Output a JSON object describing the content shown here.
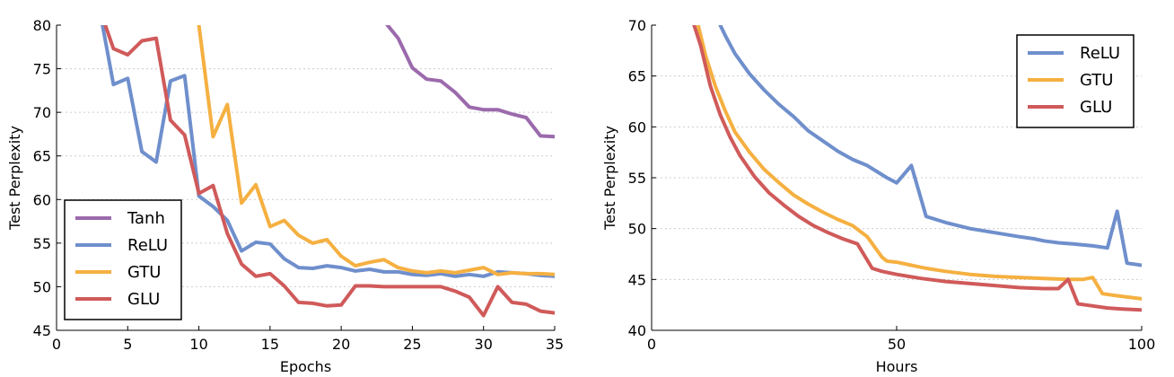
{
  "chart_data": [
    {
      "type": "line",
      "xlabel": "Epochs",
      "ylabel": "Test Perplexity",
      "xlim": [
        0,
        35
      ],
      "ylim": [
        45,
        80
      ],
      "xticks": [
        0,
        5,
        10,
        15,
        20,
        25,
        30,
        35
      ],
      "yticks": [
        45,
        50,
        55,
        60,
        65,
        70,
        75,
        80
      ],
      "grid": "horizontal",
      "legend_position": "lower-left",
      "series": [
        {
          "name": "Tanh",
          "color": "#9b6aac",
          "x": [
            22,
            23,
            24,
            25,
            26,
            27,
            28,
            29,
            30,
            31,
            32,
            33,
            34,
            35
          ],
          "y": [
            82,
            80.5,
            78.5,
            75.1,
            73.8,
            73.6,
            72.3,
            70.6,
            70.3,
            70.3,
            69.8,
            69.4,
            67.3,
            67.2
          ]
        },
        {
          "name": "ReLU",
          "color": "#6f8fcc",
          "x": [
            3,
            4,
            5,
            6,
            7,
            8,
            9,
            10,
            11,
            12,
            13,
            14,
            15,
            16,
            17,
            18,
            19,
            20,
            21,
            22,
            23,
            24,
            25,
            26,
            27,
            28,
            29,
            30,
            31,
            32,
            33,
            34,
            35
          ],
          "y": [
            82,
            73.2,
            73.9,
            65.5,
            64.3,
            73.6,
            74.2,
            60.4,
            59.2,
            57.6,
            54.1,
            55.1,
            54.9,
            53.2,
            52.2,
            52.1,
            52.4,
            52.2,
            51.8,
            52.0,
            51.7,
            51.7,
            51.4,
            51.3,
            51.5,
            51.2,
            51.4,
            51.2,
            51.7,
            51.6,
            51.5,
            51.3,
            51.2
          ]
        },
        {
          "name": "GTU",
          "color": "#f5b041",
          "x": [
            10,
            11,
            12,
            13,
            14,
            15,
            16,
            17,
            18,
            19,
            20,
            21,
            22,
            23,
            24,
            25,
            26,
            27,
            28,
            29,
            30,
            31,
            32,
            33,
            34,
            35
          ],
          "y": [
            80,
            67.2,
            70.9,
            59.6,
            61.7,
            56.9,
            57.6,
            55.9,
            55.0,
            55.4,
            53.5,
            52.4,
            52.8,
            53.1,
            52.2,
            51.8,
            51.6,
            51.8,
            51.6,
            51.9,
            52.2,
            51.4,
            51.6,
            51.5,
            51.5,
            51.4
          ]
        },
        {
          "name": "GLU",
          "color": "#d05a5a",
          "x": [
            3,
            4,
            5,
            6,
            7,
            8,
            9,
            10,
            11,
            12,
            13,
            14,
            15,
            16,
            17,
            18,
            19,
            20,
            21,
            22,
            23,
            24,
            25,
            26,
            27,
            28,
            29,
            30,
            31,
            32,
            33,
            34,
            35
          ],
          "y": [
            82,
            77.3,
            76.6,
            78.2,
            78.5,
            69.1,
            67.4,
            60.7,
            61.6,
            56.1,
            52.6,
            51.2,
            51.5,
            50.1,
            48.2,
            48.1,
            47.8,
            47.9,
            50.1,
            50.1,
            50.0,
            50.0,
            50.0,
            50.0,
            50.0,
            49.5,
            48.8,
            46.7,
            50.0,
            48.2,
            48.0,
            47.2,
            47.0
          ]
        }
      ]
    },
    {
      "type": "line",
      "xlabel": "Hours",
      "ylabel": "Test Perplexity",
      "xlim": [
        0,
        100
      ],
      "ylim": [
        40,
        70
      ],
      "xticks": [
        0,
        50,
        100
      ],
      "yticks": [
        40,
        45,
        50,
        55,
        60,
        65,
        70
      ],
      "grid": "horizontal",
      "legend_position": "upper-right",
      "series": [
        {
          "name": "ReLU",
          "color": "#6f8fcc",
          "x": [
            13,
            15,
            17,
            20,
            23,
            26,
            29,
            32,
            35,
            38,
            41,
            44,
            48,
            50,
            53,
            56,
            60,
            65,
            70,
            75,
            78,
            80,
            83,
            86,
            90,
            93,
            95,
            97,
            100
          ],
          "y": [
            71,
            69,
            67.2,
            65.2,
            63.6,
            62.2,
            61.0,
            59.6,
            58.6,
            57.6,
            56.8,
            56.2,
            55.0,
            54.5,
            56.2,
            51.2,
            50.6,
            50.0,
            49.6,
            49.2,
            49.0,
            48.8,
            48.6,
            48.5,
            48.3,
            48.1,
            51.7,
            46.6,
            46.4
          ]
        },
        {
          "name": "GTU",
          "color": "#f5b041",
          "x": [
            9,
            11,
            13,
            15,
            17,
            20,
            23,
            26,
            29,
            32,
            35,
            38,
            41,
            44,
            47,
            48,
            50,
            53,
            56,
            60,
            65,
            70,
            75,
            80,
            85,
            88,
            90,
            92,
            95,
            100
          ],
          "y": [
            71,
            67,
            64,
            61.6,
            59.5,
            57.5,
            55.8,
            54.5,
            53.3,
            52.4,
            51.6,
            50.9,
            50.3,
            49.2,
            47.2,
            46.8,
            46.7,
            46.4,
            46.1,
            45.8,
            45.5,
            45.3,
            45.2,
            45.1,
            45.0,
            45.0,
            45.2,
            43.6,
            43.4,
            43.1
          ]
        },
        {
          "name": "GLU",
          "color": "#d05a5a",
          "x": [
            8,
            10,
            12,
            14,
            16,
            18,
            21,
            24,
            27,
            30,
            33,
            36,
            39,
            42,
            45,
            47,
            50,
            55,
            60,
            65,
            70,
            75,
            80,
            83,
            85,
            87,
            90,
            93,
            96,
            100
          ],
          "y": [
            71,
            68,
            64,
            61.2,
            59.0,
            57.2,
            55.1,
            53.5,
            52.3,
            51.2,
            50.3,
            49.6,
            49.0,
            48.5,
            46.1,
            45.8,
            45.5,
            45.1,
            44.8,
            44.6,
            44.4,
            44.2,
            44.1,
            44.1,
            45.0,
            42.6,
            42.4,
            42.2,
            42.1,
            42.0
          ]
        }
      ]
    }
  ]
}
